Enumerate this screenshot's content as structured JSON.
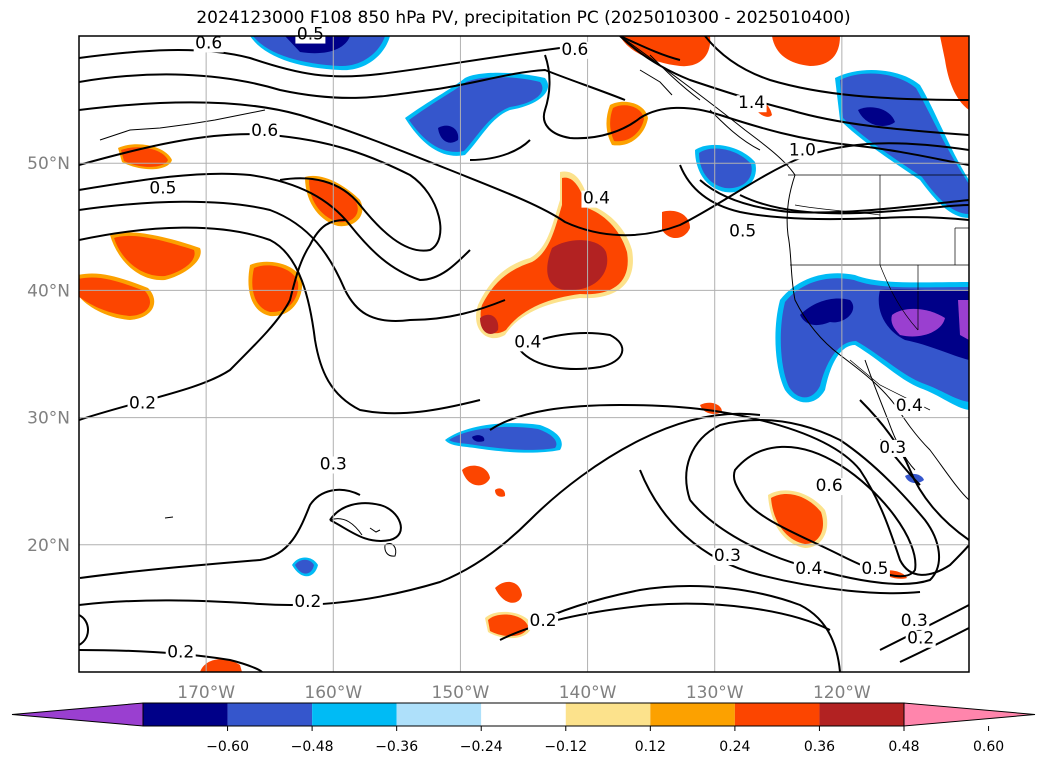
{
  "title": "2024123000 F108 850 hPa PV, precipitation PC (2025010300 - 2025010400)",
  "lon_ticks": [
    {
      "lon": -170,
      "label": "170°W"
    },
    {
      "lon": -160,
      "label": "160°W"
    },
    {
      "lon": -150,
      "label": "150°W"
    },
    {
      "lon": -140,
      "label": "140°W"
    },
    {
      "lon": -130,
      "label": "130°W"
    },
    {
      "lon": -120,
      "label": "120°W"
    }
  ],
  "lat_ticks": [
    {
      "lat": 50,
      "label": "50°N"
    },
    {
      "lat": 40,
      "label": "40°N"
    },
    {
      "lat": 30,
      "label": "30°N"
    },
    {
      "lat": 20,
      "label": "20°N"
    }
  ],
  "colorbar": {
    "tick_labels": [
      "−0.60",
      "−0.48",
      "−0.36",
      "−0.24",
      "−0.12",
      "0.12",
      "0.24",
      "0.36",
      "0.48",
      "0.60"
    ],
    "colors": [
      "#9a3fd0",
      "#000088",
      "#3556cc",
      "#00bbf5",
      "#aee0fa",
      "#ffffff",
      "#fce28c",
      "#fca100",
      "#fc4500",
      "#b22222",
      "#ff85ac"
    ]
  },
  "contour_labels": [
    {
      "text": "0.6",
      "lon": -169.8,
      "lat": 59.1
    },
    {
      "text": "0.5",
      "lon": -161.8,
      "lat": 59.8
    },
    {
      "text": "0.6",
      "lon": -141.0,
      "lat": 58.6
    },
    {
      "text": "0.6",
      "lon": -165.4,
      "lat": 52.2
    },
    {
      "text": "0.5",
      "lon": -173.4,
      "lat": 47.7
    },
    {
      "text": "0.4",
      "lon": -139.3,
      "lat": 46.9
    },
    {
      "text": "1.4",
      "lon": -127.1,
      "lat": 54.4
    },
    {
      "text": "1.0",
      "lon": -123.1,
      "lat": 50.7
    },
    {
      "text": "0.5",
      "lon": -127.8,
      "lat": 44.3
    },
    {
      "text": "0.4",
      "lon": -144.7,
      "lat": 35.6
    },
    {
      "text": "0.2",
      "lon": -175.0,
      "lat": 30.8
    },
    {
      "text": "0.3",
      "lon": -160.0,
      "lat": 26.0
    },
    {
      "text": "0.2",
      "lon": -162.0,
      "lat": 15.2
    },
    {
      "text": "0.2",
      "lon": -172.0,
      "lat": 11.2
    },
    {
      "text": "0.2",
      "lon": -143.5,
      "lat": 13.7
    },
    {
      "text": "0.3",
      "lon": -129.0,
      "lat": 18.8
    },
    {
      "text": "0.4",
      "lon": -122.6,
      "lat": 17.8
    },
    {
      "text": "0.5",
      "lon": -117.4,
      "lat": 17.8
    },
    {
      "text": "0.6",
      "lon": -121.0,
      "lat": 24.3
    },
    {
      "text": "0.4",
      "lon": -114.7,
      "lat": 30.6
    },
    {
      "text": "0.3",
      "lon": -116.0,
      "lat": 27.3
    },
    {
      "text": "0.3",
      "lon": -114.3,
      "lat": 13.7
    },
    {
      "text": "0.2",
      "lon": -113.8,
      "lat": 12.3
    }
  ]
}
